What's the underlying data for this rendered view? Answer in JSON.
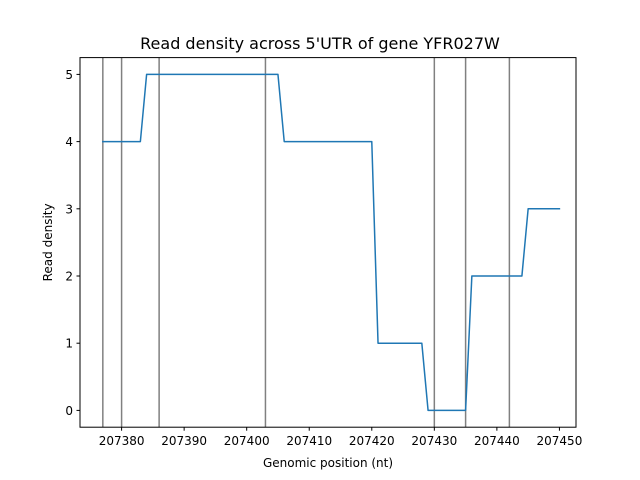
{
  "chart_data": {
    "type": "line",
    "title": "Read density across 5'UTR of gene YFR027W",
    "xlabel": "Genomic position (nt)",
    "ylabel": "Read density",
    "xlim": [
      207373.35,
      207452.65
    ],
    "ylim": [
      -0.25,
      5.25
    ],
    "xticks": [
      207380,
      207390,
      207400,
      207410,
      207420,
      207430,
      207440,
      207450
    ],
    "yticks": [
      0,
      1,
      2,
      3,
      4,
      5
    ],
    "grid": false,
    "vertical_lines": [
      207377,
      207380,
      207386,
      207403,
      207430,
      207435,
      207442
    ],
    "vertical_line_color": "#808080",
    "series": [
      {
        "color": "#1f77b4",
        "x": [
          207377,
          207383,
          207384,
          207405,
          207406,
          207420,
          207421,
          207428,
          207429,
          207435,
          207436,
          207444,
          207445,
          207450
        ],
        "y": [
          4,
          4,
          5,
          5,
          4,
          4,
          1,
          1,
          0,
          0,
          2,
          2,
          3,
          3
        ]
      }
    ]
  }
}
